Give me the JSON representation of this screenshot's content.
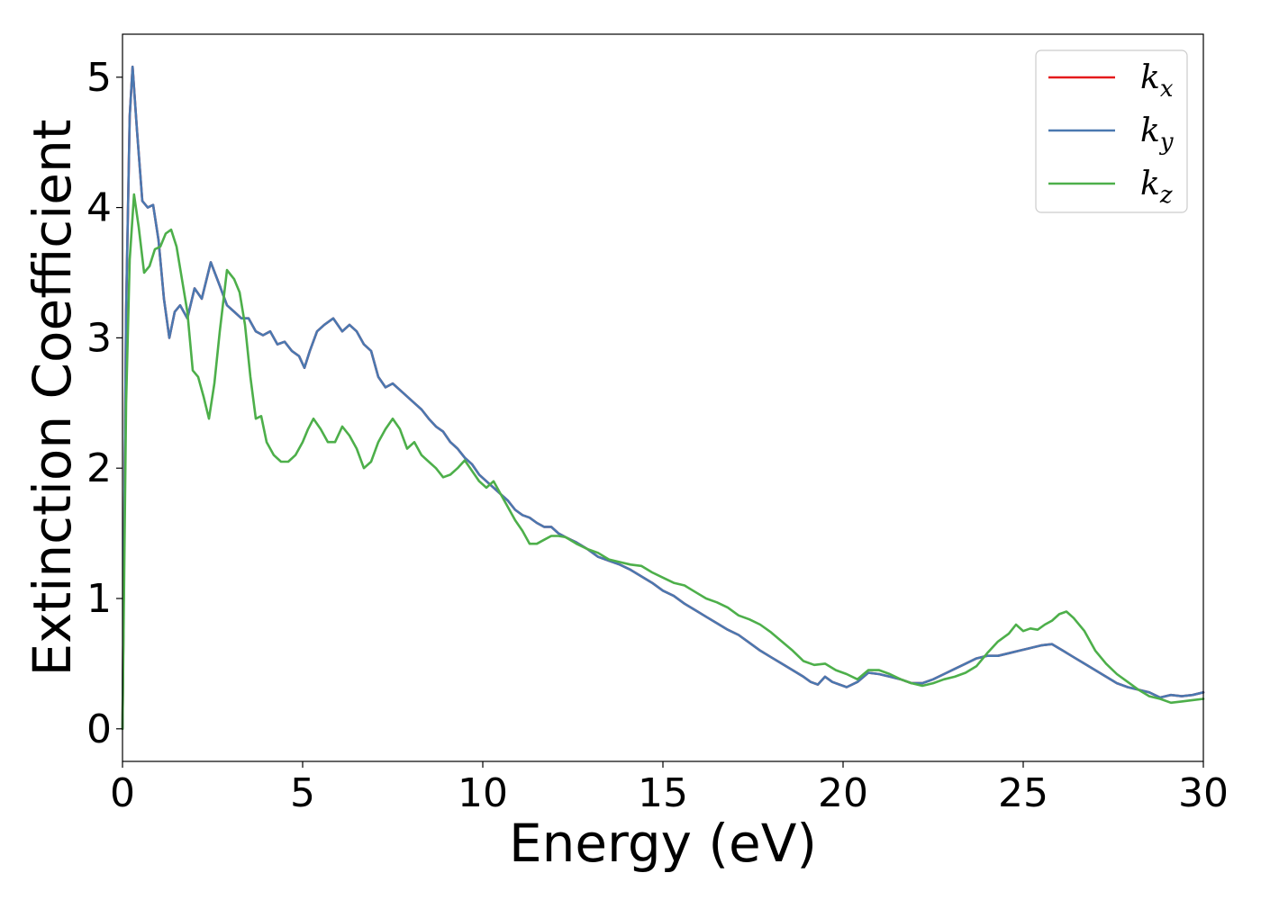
{
  "chart_data": {
    "type": "line",
    "title": "",
    "xlabel": "Energy (eV)",
    "ylabel": "Extinction Coefficient",
    "xlim": [
      0,
      30
    ],
    "ylim": [
      -0.25,
      5.33
    ],
    "x_ticks": [
      "0",
      "5",
      "10",
      "15",
      "20",
      "25",
      "30"
    ],
    "y_ticks": [
      "0",
      "1",
      "2",
      "3",
      "4",
      "5"
    ],
    "x_tick_values": [
      0,
      5,
      10,
      15,
      20,
      25,
      30
    ],
    "y_tick_values": [
      0,
      1,
      2,
      3,
      4,
      5
    ],
    "grid": false,
    "legend_position": "top-right",
    "series": [
      {
        "name": "k_x",
        "legend_base": "k",
        "legend_sub": "x",
        "color": "#e41a1c",
        "x": [
          0,
          0.1,
          0.2,
          0.28,
          0.4,
          0.55,
          0.7,
          0.85,
          1.0,
          1.15,
          1.3,
          1.45,
          1.6,
          1.8,
          2.0,
          2.2,
          2.45,
          2.7,
          2.9,
          3.1,
          3.3,
          3.5,
          3.7,
          3.9,
          4.1,
          4.3,
          4.5,
          4.7,
          4.9,
          5.05,
          5.2,
          5.4,
          5.6,
          5.85,
          6.1,
          6.3,
          6.5,
          6.7,
          6.9,
          7.1,
          7.3,
          7.5,
          7.7,
          7.9,
          8.1,
          8.3,
          8.5,
          8.7,
          8.9,
          9.1,
          9.3,
          9.5,
          9.7,
          9.9,
          10.1,
          10.3,
          10.5,
          10.7,
          10.9,
          11.1,
          11.3,
          11.5,
          11.7,
          11.9,
          12.1,
          12.3,
          12.6,
          12.9,
          13.2,
          13.5,
          13.8,
          14.1,
          14.4,
          14.7,
          15.0,
          15.3,
          15.6,
          15.9,
          16.2,
          16.5,
          16.8,
          17.1,
          17.4,
          17.7,
          18.0,
          18.3,
          18.6,
          18.9,
          19.1,
          19.3,
          19.5,
          19.7,
          19.9,
          20.1,
          20.4,
          20.7,
          21.0,
          21.3,
          21.6,
          21.9,
          22.2,
          22.5,
          22.8,
          23.1,
          23.4,
          23.7,
          24.0,
          24.3,
          24.6,
          24.9,
          25.2,
          25.5,
          25.8,
          26.1,
          26.4,
          26.7,
          27.0,
          27.3,
          27.6,
          27.9,
          28.2,
          28.5,
          28.8,
          29.1,
          29.4,
          29.7,
          30.0
        ],
        "y": [
          0,
          3.2,
          4.7,
          5.08,
          4.6,
          4.05,
          4.0,
          4.02,
          3.75,
          3.3,
          3.0,
          3.2,
          3.25,
          3.15,
          3.38,
          3.3,
          3.58,
          3.4,
          3.25,
          3.2,
          3.15,
          3.15,
          3.05,
          3.02,
          3.05,
          2.95,
          2.97,
          2.9,
          2.86,
          2.77,
          2.9,
          3.05,
          3.1,
          3.15,
          3.05,
          3.1,
          3.05,
          2.95,
          2.9,
          2.7,
          2.62,
          2.65,
          2.6,
          2.55,
          2.5,
          2.45,
          2.38,
          2.32,
          2.28,
          2.2,
          2.15,
          2.08,
          2.03,
          1.95,
          1.9,
          1.85,
          1.8,
          1.75,
          1.68,
          1.64,
          1.62,
          1.58,
          1.55,
          1.55,
          1.5,
          1.47,
          1.43,
          1.38,
          1.32,
          1.29,
          1.26,
          1.22,
          1.17,
          1.12,
          1.06,
          1.02,
          0.96,
          0.91,
          0.86,
          0.81,
          0.76,
          0.72,
          0.66,
          0.6,
          0.55,
          0.5,
          0.45,
          0.4,
          0.36,
          0.34,
          0.4,
          0.36,
          0.34,
          0.32,
          0.36,
          0.43,
          0.42,
          0.4,
          0.38,
          0.35,
          0.35,
          0.38,
          0.42,
          0.46,
          0.5,
          0.54,
          0.56,
          0.56,
          0.58,
          0.6,
          0.62,
          0.64,
          0.65,
          0.6,
          0.55,
          0.5,
          0.45,
          0.4,
          0.35,
          0.32,
          0.3,
          0.28,
          0.24,
          0.26,
          0.25,
          0.26,
          0.28
        ]
      },
      {
        "name": "k_y",
        "legend_base": "k",
        "legend_sub": "y",
        "color": "#4a78b0",
        "x": [
          0,
          0.1,
          0.2,
          0.28,
          0.4,
          0.55,
          0.7,
          0.85,
          1.0,
          1.15,
          1.3,
          1.45,
          1.6,
          1.8,
          2.0,
          2.2,
          2.45,
          2.7,
          2.9,
          3.1,
          3.3,
          3.5,
          3.7,
          3.9,
          4.1,
          4.3,
          4.5,
          4.7,
          4.9,
          5.05,
          5.2,
          5.4,
          5.6,
          5.85,
          6.1,
          6.3,
          6.5,
          6.7,
          6.9,
          7.1,
          7.3,
          7.5,
          7.7,
          7.9,
          8.1,
          8.3,
          8.5,
          8.7,
          8.9,
          9.1,
          9.3,
          9.5,
          9.7,
          9.9,
          10.1,
          10.3,
          10.5,
          10.7,
          10.9,
          11.1,
          11.3,
          11.5,
          11.7,
          11.9,
          12.1,
          12.3,
          12.6,
          12.9,
          13.2,
          13.5,
          13.8,
          14.1,
          14.4,
          14.7,
          15.0,
          15.3,
          15.6,
          15.9,
          16.2,
          16.5,
          16.8,
          17.1,
          17.4,
          17.7,
          18.0,
          18.3,
          18.6,
          18.9,
          19.1,
          19.3,
          19.5,
          19.7,
          19.9,
          20.1,
          20.4,
          20.7,
          21.0,
          21.3,
          21.6,
          21.9,
          22.2,
          22.5,
          22.8,
          23.1,
          23.4,
          23.7,
          24.0,
          24.3,
          24.6,
          24.9,
          25.2,
          25.5,
          25.8,
          26.1,
          26.4,
          26.7,
          27.0,
          27.3,
          27.6,
          27.9,
          28.2,
          28.5,
          28.8,
          29.1,
          29.4,
          29.7,
          30.0
        ],
        "y": [
          0,
          3.2,
          4.7,
          5.08,
          4.6,
          4.05,
          4.0,
          4.02,
          3.75,
          3.3,
          3.0,
          3.2,
          3.25,
          3.15,
          3.38,
          3.3,
          3.58,
          3.4,
          3.25,
          3.2,
          3.15,
          3.15,
          3.05,
          3.02,
          3.05,
          2.95,
          2.97,
          2.9,
          2.86,
          2.77,
          2.9,
          3.05,
          3.1,
          3.15,
          3.05,
          3.1,
          3.05,
          2.95,
          2.9,
          2.7,
          2.62,
          2.65,
          2.6,
          2.55,
          2.5,
          2.45,
          2.38,
          2.32,
          2.28,
          2.2,
          2.15,
          2.08,
          2.03,
          1.95,
          1.9,
          1.85,
          1.8,
          1.75,
          1.68,
          1.64,
          1.62,
          1.58,
          1.55,
          1.55,
          1.5,
          1.47,
          1.43,
          1.38,
          1.32,
          1.29,
          1.26,
          1.22,
          1.17,
          1.12,
          1.06,
          1.02,
          0.96,
          0.91,
          0.86,
          0.81,
          0.76,
          0.72,
          0.66,
          0.6,
          0.55,
          0.5,
          0.45,
          0.4,
          0.36,
          0.34,
          0.4,
          0.36,
          0.34,
          0.32,
          0.36,
          0.43,
          0.42,
          0.4,
          0.38,
          0.35,
          0.35,
          0.38,
          0.42,
          0.46,
          0.5,
          0.54,
          0.56,
          0.56,
          0.58,
          0.6,
          0.62,
          0.64,
          0.65,
          0.6,
          0.55,
          0.5,
          0.45,
          0.4,
          0.35,
          0.32,
          0.3,
          0.28,
          0.24,
          0.26,
          0.25,
          0.26,
          0.28
        ]
      },
      {
        "name": "k_z",
        "legend_base": "k",
        "legend_sub": "z",
        "color": "#4daf4a",
        "x": [
          0,
          0.1,
          0.2,
          0.32,
          0.45,
          0.6,
          0.75,
          0.9,
          1.05,
          1.2,
          1.35,
          1.5,
          1.65,
          1.8,
          1.95,
          2.1,
          2.25,
          2.4,
          2.55,
          2.7,
          2.9,
          3.1,
          3.25,
          3.4,
          3.55,
          3.7,
          3.85,
          4.0,
          4.2,
          4.4,
          4.6,
          4.8,
          5.0,
          5.15,
          5.3,
          5.5,
          5.7,
          5.9,
          6.1,
          6.3,
          6.5,
          6.7,
          6.9,
          7.1,
          7.3,
          7.5,
          7.7,
          7.9,
          8.1,
          8.3,
          8.5,
          8.7,
          8.9,
          9.1,
          9.3,
          9.5,
          9.7,
          9.9,
          10.1,
          10.3,
          10.5,
          10.7,
          10.9,
          11.1,
          11.3,
          11.5,
          11.7,
          11.9,
          12.1,
          12.3,
          12.6,
          12.9,
          13.2,
          13.5,
          13.8,
          14.1,
          14.4,
          14.7,
          15.0,
          15.3,
          15.6,
          15.9,
          16.2,
          16.5,
          16.8,
          17.1,
          17.4,
          17.7,
          18.0,
          18.3,
          18.6,
          18.9,
          19.2,
          19.5,
          19.8,
          20.1,
          20.4,
          20.7,
          21.0,
          21.3,
          21.6,
          21.9,
          22.2,
          22.5,
          22.8,
          23.1,
          23.4,
          23.7,
          24.0,
          24.3,
          24.6,
          24.8,
          25.0,
          25.2,
          25.4,
          25.6,
          25.8,
          26.0,
          26.2,
          26.4,
          26.7,
          27.0,
          27.3,
          27.6,
          27.9,
          28.2,
          28.5,
          28.8,
          29.1,
          29.4,
          29.7,
          30.0
        ],
        "y": [
          0,
          2.5,
          3.6,
          4.1,
          3.85,
          3.5,
          3.55,
          3.68,
          3.7,
          3.8,
          3.83,
          3.7,
          3.45,
          3.2,
          2.75,
          2.7,
          2.55,
          2.38,
          2.65,
          3.05,
          3.52,
          3.45,
          3.35,
          3.1,
          2.7,
          2.38,
          2.4,
          2.2,
          2.1,
          2.05,
          2.05,
          2.1,
          2.2,
          2.3,
          2.38,
          2.3,
          2.2,
          2.2,
          2.32,
          2.25,
          2.15,
          2.0,
          2.05,
          2.2,
          2.3,
          2.38,
          2.3,
          2.15,
          2.2,
          2.1,
          2.05,
          2.0,
          1.93,
          1.95,
          2.0,
          2.06,
          1.98,
          1.9,
          1.85,
          1.9,
          1.8,
          1.7,
          1.6,
          1.52,
          1.42,
          1.42,
          1.45,
          1.48,
          1.48,
          1.47,
          1.42,
          1.38,
          1.35,
          1.3,
          1.28,
          1.26,
          1.25,
          1.2,
          1.16,
          1.12,
          1.1,
          1.05,
          1.0,
          0.97,
          0.93,
          0.87,
          0.84,
          0.8,
          0.74,
          0.67,
          0.6,
          0.52,
          0.49,
          0.5,
          0.45,
          0.42,
          0.38,
          0.45,
          0.45,
          0.42,
          0.38,
          0.35,
          0.33,
          0.35,
          0.38,
          0.4,
          0.43,
          0.48,
          0.58,
          0.67,
          0.73,
          0.8,
          0.75,
          0.77,
          0.76,
          0.8,
          0.83,
          0.88,
          0.9,
          0.85,
          0.75,
          0.6,
          0.5,
          0.42,
          0.36,
          0.3,
          0.25,
          0.23,
          0.2,
          0.21,
          0.22,
          0.23
        ]
      }
    ]
  }
}
